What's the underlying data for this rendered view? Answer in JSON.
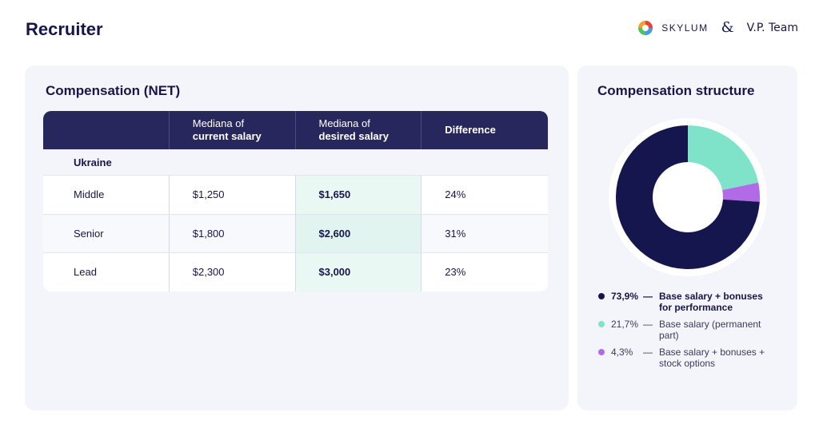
{
  "page": {
    "title": "Recruiter"
  },
  "brands": {
    "skylum": "SKYLUM",
    "ampersand": "&",
    "vp": "V.P. Team"
  },
  "compensation": {
    "title": "Compensation (NET)",
    "headers": [
      {
        "line1": "",
        "line2": ""
      },
      {
        "line1": "Mediana of",
        "line2": "current salary"
      },
      {
        "line1": "Mediana of",
        "line2": "desired salary"
      },
      {
        "line1": "Difference",
        "line2": ""
      }
    ],
    "group": "Ukraine",
    "rows": [
      {
        "level": "Middle",
        "current": "$1,250",
        "desired": "$1,650",
        "difference": "24%"
      },
      {
        "level": "Senior",
        "current": "$1,800",
        "desired": "$2,600",
        "difference": "31%"
      },
      {
        "level": "Lead",
        "current": "$2,300",
        "desired": "$3,000",
        "difference": "23%"
      }
    ]
  },
  "structure": {
    "title": "Compensation structure",
    "legend": [
      {
        "pct": "73,9%",
        "dash": "—",
        "label": "Base salary + bonuses for performance"
      },
      {
        "pct": "21,7%",
        "dash": "—",
        "label": "Base salary (permanent part)"
      },
      {
        "pct": "4,3%",
        "dash": "—",
        "label": "Base salary + bonuses + stock options"
      }
    ]
  },
  "chart_data": {
    "type": "pie",
    "title": "Compensation structure",
    "donut": true,
    "slices": [
      {
        "label": "Base salary + bonuses for performance",
        "value": 73.9,
        "color": "#16164f"
      },
      {
        "label": "Base salary (permanent part)",
        "value": 21.7,
        "color": "#7ee3c8"
      },
      {
        "label": "Base salary + bonuses + stock options",
        "value": 4.3,
        "color": "#b26be6"
      }
    ]
  }
}
